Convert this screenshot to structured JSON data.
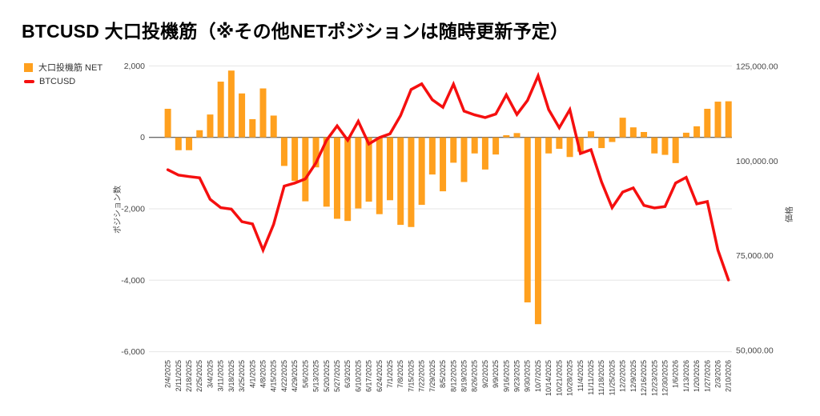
{
  "title": "BTCUSD 大口投機筋（※その他NETポジションは随時更新予定）",
  "legend": {
    "net_label": "大口投機筋  NET",
    "price_label": "BTCUSD"
  },
  "colors": {
    "net": "#ffa01e",
    "price": "#f50f0f",
    "grid": "#e6e6e6",
    "zero_line": "#6b6b6b",
    "tick_text": "#464646",
    "x_tick_text": "#333333",
    "axis_title_text": "#444444"
  },
  "axes": {
    "left": {
      "title": "ポジション数",
      "ticks": [
        {
          "label": "2,000",
          "value": 2000
        },
        {
          "label": "0",
          "value": 0
        },
        {
          "label": "-2,000",
          "value": -2000
        },
        {
          "label": "-4,000",
          "value": -4000
        },
        {
          "label": "-6,000",
          "value": -6000
        }
      ]
    },
    "right": {
      "title": "価格",
      "ticks": [
        {
          "label": "125,000.00",
          "value": 125000
        },
        {
          "label": "100,000.00",
          "value": 100000
        },
        {
          "label": "75,000.00",
          "value": 75000
        },
        {
          "label": "50,000.00",
          "value": 50000
        }
      ]
    }
  },
  "chart_data": {
    "type": "bar+line combo",
    "categories": [
      "2/4/2025",
      "2/11/2025",
      "2/18/2025",
      "2/25/2025",
      "3/4/2025",
      "3/11/2025",
      "3/18/2025",
      "3/25/2025",
      "4/1/2025",
      "4/8/2025",
      "4/15/2025",
      "4/22/2025",
      "4/29/2025",
      "5/6/2025",
      "5/13/2025",
      "5/20/2025",
      "5/27/2025",
      "6/3/2025",
      "6/10/2025",
      "6/17/2025",
      "6/24/2025",
      "7/1/2025",
      "7/8/2025",
      "7/15/2025",
      "7/22/2025",
      "7/29/2025",
      "8/5/2025",
      "8/12/2025",
      "8/19/2025",
      "8/26/2025",
      "9/2/2025",
      "9/9/2025",
      "9/16/2025",
      "9/23/2025",
      "9/30/2025",
      "10/7/2025",
      "10/14/2025",
      "10/21/2025",
      "10/28/2025",
      "11/4/2025",
      "11/11/2025",
      "11/18/2025",
      "11/25/2025",
      "12/2/2025",
      "12/9/2025",
      "12/16/2025",
      "12/23/2025",
      "12/30/2025",
      "1/6/2026",
      "1/13/2026",
      "1/20/2026",
      "1/27/2026",
      "2/3/2026",
      "2/10/2026"
    ],
    "series": [
      {
        "name": "大口投機筋 NET",
        "type": "bar",
        "axis": "left",
        "values": [
          800,
          -360,
          -360,
          200,
          640,
          1560,
          1870,
          1230,
          510,
          1370,
          610,
          -800,
          -1220,
          -1790,
          -840,
          -1940,
          -2280,
          -2340,
          -1990,
          -1800,
          -2150,
          -1760,
          -2450,
          -2510,
          -1890,
          -1040,
          -1510,
          -710,
          -1250,
          -450,
          -900,
          -480,
          60,
          120,
          -4620,
          -5230,
          -450,
          -320,
          -550,
          -400,
          170,
          -300,
          -130,
          550,
          280,
          150,
          -450,
          -490,
          -720,
          130,
          310,
          800,
          1000,
          1010
        ]
      },
      {
        "name": "BTCUSD",
        "type": "line",
        "axis": "right",
        "values": [
          97700,
          96300,
          95900,
          95600,
          89900,
          87700,
          87300,
          84000,
          83400,
          76500,
          83300,
          93400,
          94200,
          95300,
          99500,
          105500,
          109300,
          105500,
          110500,
          104500,
          106200,
          107200,
          112000,
          118900,
          120400,
          116200,
          114200,
          120300,
          113200,
          112200,
          111500,
          112400,
          117500,
          112300,
          116000,
          122500,
          113600,
          108800,
          113600,
          102000,
          103000,
          94500,
          87700,
          91800,
          92900,
          88300,
          87600,
          88000,
          94200,
          95700,
          88700,
          89300,
          76500,
          68600
        ]
      }
    ],
    "left_axis_range": [
      -6000,
      2000
    ],
    "right_axis_range": [
      50000,
      125000
    ],
    "grid": "horizontal gridlines at left-axis ticks, zero baseline darker",
    "legend_position": "top-left"
  }
}
